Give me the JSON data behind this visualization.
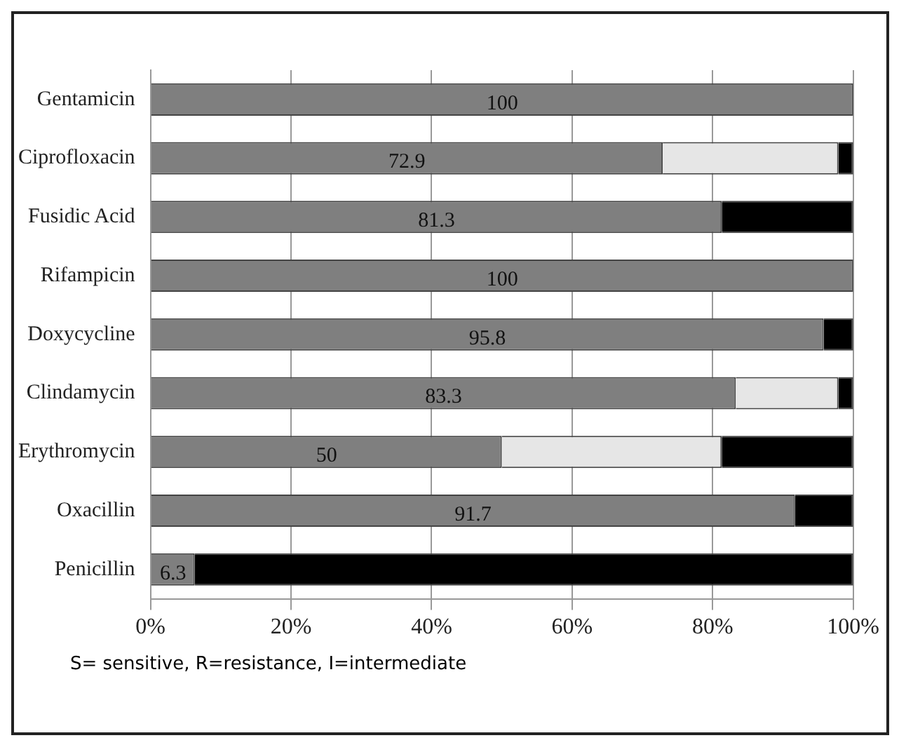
{
  "chart_data": {
    "type": "bar",
    "orientation": "horizontal",
    "stacked": true,
    "categories": [
      "Gentamicin",
      "Ciprofloxacin",
      "Fusidic Acid",
      "Rifampicin",
      "Doxycycline",
      "Clindamycin",
      "Erythromycin",
      "Oxacillin",
      "Penicillin"
    ],
    "series": [
      {
        "color": "#7f7f7f",
        "values": [
          100,
          72.9,
          81.3,
          100,
          95.8,
          83.3,
          50,
          91.7,
          6.3
        ],
        "value_labels": [
          "100",
          "72.9",
          "81.3",
          "100",
          "95.8",
          "83.3",
          "50",
          "91.7",
          "6.3"
        ]
      },
      {
        "color": "#e6e6e6",
        "values": [
          0,
          25,
          0,
          0,
          0,
          14.6,
          31.3,
          0,
          0
        ]
      },
      {
        "color": "#000000",
        "values": [
          0,
          2.1,
          18.7,
          0,
          4.2,
          2.1,
          18.7,
          8.3,
          93.7
        ]
      }
    ],
    "xlim": [
      0,
      100
    ],
    "xticks": [
      {
        "value": 0,
        "label": "0%"
      },
      {
        "value": 20,
        "label": "20%"
      },
      {
        "value": 40,
        "label": "40%"
      },
      {
        "value": 60,
        "label": "60%"
      },
      {
        "value": 80,
        "label": "80%"
      },
      {
        "value": 100,
        "label": "100%"
      }
    ],
    "grid": "x",
    "legend": false,
    "annotations": [
      "S= sensitive, R=resistance, I=intermediate"
    ]
  }
}
